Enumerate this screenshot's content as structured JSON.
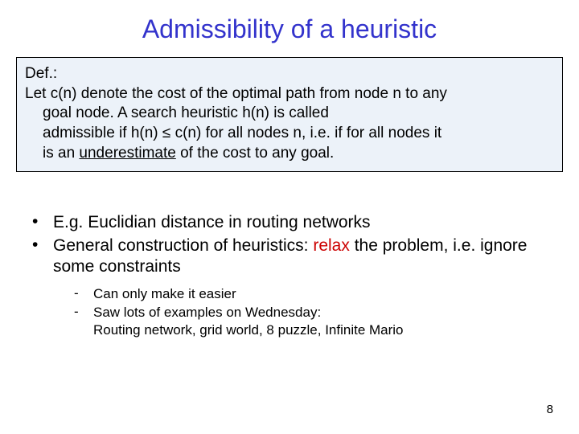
{
  "colors": {
    "title": "#3333cc",
    "box_bg": "#ecf2f9",
    "box_border": "#000000",
    "text": "#000000",
    "accent_red": "#cc0000"
  },
  "title": "Admissibility of a heuristic",
  "def": {
    "label": "Def.:",
    "line1_a": "Let c(n) denote the cost of the optimal path from node n to any",
    "line2_a": "goal node. A search heuristic h(n) is called",
    "line3_a": "admissible",
    "line3_b": "  if h(n) ≤ c(n) for all nodes n, i.e. if for all nodes it",
    "line4_a": "is an ",
    "line4_underlined": "underestimate",
    "line4_b": " of the cost to any goal."
  },
  "bullets": [
    {
      "text_plain": "E.g.  Euclidian distance in routing networks"
    },
    {
      "text_a": "General construction of heuristics: ",
      "accent": "relax",
      "text_b": " the problem, i.e. ignore some constraints"
    }
  ],
  "subbullets": [
    "Can only make it easier",
    "Saw lots of examples on Wednesday:\nRouting network, grid world, 8 puzzle, Infinite Mario"
  ],
  "page_number": "8",
  "font": {
    "title_size": 32,
    "body_size": 19,
    "bullet_size": 21,
    "subbullet_size": 17
  }
}
